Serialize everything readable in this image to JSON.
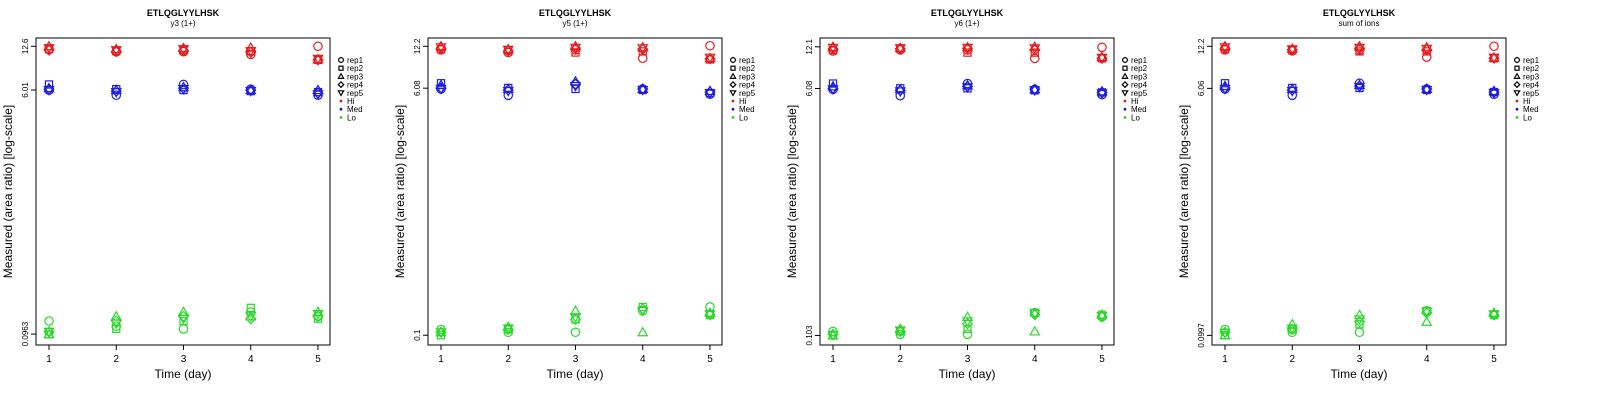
{
  "colors": {
    "Hi": "#e41a1c",
    "Med": "#1f1fe0",
    "Lo": "#2bd62b"
  },
  "chart_data": [
    {
      "type": "scatter",
      "title": "ETLQGLYYLHSK",
      "subtitle": "y3 (1+)",
      "xlabel": "Time (day)",
      "ylabel": "Measured (area ratio) [log-scale]",
      "x_ticks": [
        "1",
        "2",
        "3",
        "4",
        "5"
      ],
      "y_tick_labels": [
        "0.0963",
        "6.01",
        "12.6"
      ],
      "y_tick_values": [
        0.0963,
        6.01,
        12.6
      ],
      "ylim": [
        0.08,
        14.5
      ],
      "legend": [
        "rep1",
        "rep2",
        "rep3",
        "rep4",
        "rep5",
        "Hi",
        "Med",
        "Lo"
      ],
      "series": [
        {
          "group": "Hi",
          "rep": "rep1",
          "values": [
            12.0,
            11.5,
            11.5,
            11.0,
            12.6
          ]
        },
        {
          "group": "Hi",
          "rep": "rep2",
          "values": [
            12.0,
            11.6,
            11.8,
            11.6,
            10.0
          ]
        },
        {
          "group": "Hi",
          "rep": "rep3",
          "values": [
            12.6,
            12.0,
            12.2,
            12.3,
            10.1
          ]
        },
        {
          "group": "Hi",
          "rep": "rep4",
          "values": [
            11.8,
            11.5,
            11.7,
            11.4,
            10.0
          ]
        },
        {
          "group": "Hi",
          "rep": "rep5",
          "values": [
            12.2,
            11.8,
            12.0,
            11.6,
            10.2
          ]
        },
        {
          "group": "Med",
          "rep": "rep1",
          "values": [
            6.0,
            5.5,
            6.6,
            6.1,
            5.5
          ]
        },
        {
          "group": "Med",
          "rep": "rep2",
          "values": [
            6.6,
            6.1,
            6.0,
            5.9,
            5.8
          ]
        },
        {
          "group": "Med",
          "rep": "rep3",
          "values": [
            6.2,
            6.0,
            6.3,
            6.0,
            6.0
          ]
        },
        {
          "group": "Med",
          "rep": "rep4",
          "values": [
            6.1,
            5.9,
            6.2,
            6.0,
            5.7
          ]
        },
        {
          "group": "Med",
          "rep": "rep5",
          "values": [
            6.0,
            5.8,
            6.1,
            5.9,
            5.6
          ]
        },
        {
          "group": "Lo",
          "rep": "rep1",
          "values": [
            0.12,
            0.11,
            0.105,
            0.14,
            0.13
          ]
        },
        {
          "group": "Lo",
          "rep": "rep2",
          "values": [
            0.096,
            0.105,
            0.12,
            0.15,
            0.125
          ]
        },
        {
          "group": "Lo",
          "rep": "rep3",
          "values": [
            0.096,
            0.13,
            0.14,
            0.13,
            0.14
          ]
        },
        {
          "group": "Lo",
          "rep": "rep4",
          "values": [
            0.1,
            0.12,
            0.13,
            0.125,
            0.13
          ]
        },
        {
          "group": "Lo",
          "rep": "rep5",
          "values": [
            0.1,
            0.115,
            0.125,
            0.13,
            0.135
          ]
        }
      ]
    },
    {
      "type": "scatter",
      "title": "ETLQGLYYLHSK",
      "subtitle": "y5 (1+)",
      "xlabel": "Time (day)",
      "ylabel": "Measured (area ratio) [log-scale]",
      "x_ticks": [
        "1",
        "2",
        "3",
        "4",
        "5"
      ],
      "y_tick_labels": [
        "0.1",
        "6.08",
        "12.2"
      ],
      "y_tick_values": [
        0.1,
        6.08,
        12.2
      ],
      "ylim": [
        0.085,
        14.0
      ],
      "legend": [
        "rep1",
        "rep2",
        "rep3",
        "rep4",
        "rep5",
        "Hi",
        "Med",
        "Lo"
      ],
      "series": [
        {
          "group": "Hi",
          "rep": "rep1",
          "values": [
            11.5,
            11.0,
            11.5,
            10.0,
            12.3
          ]
        },
        {
          "group": "Hi",
          "rep": "rep2",
          "values": [
            11.6,
            11.4,
            11.0,
            11.2,
            9.8
          ]
        },
        {
          "group": "Hi",
          "rep": "rep3",
          "values": [
            12.2,
            11.6,
            12.2,
            12.0,
            10.0
          ]
        },
        {
          "group": "Hi",
          "rep": "rep4",
          "values": [
            11.8,
            11.3,
            11.8,
            11.6,
            9.9
          ]
        },
        {
          "group": "Hi",
          "rep": "rep5",
          "values": [
            12.0,
            11.5,
            11.9,
            11.8,
            10.1
          ]
        },
        {
          "group": "Med",
          "rep": "rep1",
          "values": [
            6.0,
            5.4,
            6.5,
            6.0,
            5.5
          ]
        },
        {
          "group": "Med",
          "rep": "rep2",
          "values": [
            6.6,
            6.1,
            6.0,
            5.9,
            5.6
          ]
        },
        {
          "group": "Med",
          "rep": "rep3",
          "values": [
            6.4,
            6.0,
            6.8,
            6.0,
            5.8
          ]
        },
        {
          "group": "Med",
          "rep": "rep4",
          "values": [
            6.1,
            5.9,
            6.5,
            6.0,
            5.7
          ]
        },
        {
          "group": "Med",
          "rep": "rep5",
          "values": [
            6.0,
            5.8,
            6.3,
            5.9,
            5.6
          ]
        },
        {
          "group": "Lo",
          "rep": "rep1",
          "values": [
            0.11,
            0.105,
            0.105,
            0.15,
            0.16
          ]
        },
        {
          "group": "Lo",
          "rep": "rep2",
          "values": [
            0.1,
            0.11,
            0.13,
            0.16,
            0.14
          ]
        },
        {
          "group": "Lo",
          "rep": "rep3",
          "values": [
            0.105,
            0.115,
            0.15,
            0.105,
            0.145
          ]
        },
        {
          "group": "Lo",
          "rep": "rep4",
          "values": [
            0.105,
            0.11,
            0.13,
            0.155,
            0.14
          ]
        },
        {
          "group": "Lo",
          "rep": "rep5",
          "values": [
            0.105,
            0.112,
            0.135,
            0.15,
            0.142
          ]
        }
      ]
    },
    {
      "type": "scatter",
      "title": "ETLQGLYYLHSK",
      "subtitle": "y6 (1+)",
      "xlabel": "Time (day)",
      "ylabel": "Measured (area ratio) [log-scale]",
      "x_ticks": [
        "1",
        "2",
        "3",
        "4",
        "5"
      ],
      "y_tick_labels": [
        "0.103",
        "6.08",
        "12.1"
      ],
      "y_tick_values": [
        0.103,
        6.08,
        12.1
      ],
      "ylim": [
        0.088,
        14.0
      ],
      "legend": [
        "rep1",
        "rep2",
        "rep3",
        "rep4",
        "rep5",
        "Hi",
        "Med",
        "Lo"
      ],
      "series": [
        {
          "group": "Hi",
          "rep": "rep1",
          "values": [
            11.3,
            11.5,
            11.5,
            10.0,
            12.0
          ]
        },
        {
          "group": "Hi",
          "rep": "rep2",
          "values": [
            11.5,
            11.8,
            11.0,
            11.0,
            10.0
          ]
        },
        {
          "group": "Hi",
          "rep": "rep3",
          "values": [
            12.1,
            11.9,
            12.0,
            12.1,
            10.2
          ]
        },
        {
          "group": "Hi",
          "rep": "rep4",
          "values": [
            11.7,
            11.7,
            11.8,
            11.5,
            10.0
          ]
        },
        {
          "group": "Hi",
          "rep": "rep5",
          "values": [
            11.9,
            11.8,
            11.9,
            11.8,
            10.1
          ]
        },
        {
          "group": "Med",
          "rep": "rep1",
          "values": [
            6.0,
            5.4,
            6.6,
            6.0,
            5.5
          ]
        },
        {
          "group": "Med",
          "rep": "rep2",
          "values": [
            6.6,
            6.1,
            6.1,
            5.9,
            5.7
          ]
        },
        {
          "group": "Med",
          "rep": "rep3",
          "values": [
            6.3,
            6.0,
            6.4,
            6.0,
            5.8
          ]
        },
        {
          "group": "Med",
          "rep": "rep4",
          "values": [
            6.1,
            5.9,
            6.3,
            6.0,
            5.7
          ]
        },
        {
          "group": "Med",
          "rep": "rep5",
          "values": [
            6.0,
            5.8,
            6.2,
            5.9,
            5.6
          ]
        },
        {
          "group": "Lo",
          "rep": "rep1",
          "values": [
            0.11,
            0.105,
            0.105,
            0.15,
            0.14
          ]
        },
        {
          "group": "Lo",
          "rep": "rep2",
          "values": [
            0.103,
            0.11,
            0.115,
            0.15,
            0.145
          ]
        },
        {
          "group": "Lo",
          "rep": "rep3",
          "values": [
            0.103,
            0.115,
            0.14,
            0.11,
            0.145
          ]
        },
        {
          "group": "Lo",
          "rep": "rep4",
          "values": [
            0.105,
            0.11,
            0.125,
            0.145,
            0.14
          ]
        },
        {
          "group": "Lo",
          "rep": "rep5",
          "values": [
            0.104,
            0.112,
            0.13,
            0.148,
            0.142
          ]
        }
      ]
    },
    {
      "type": "scatter",
      "title": "ETLQGLYYLHSK",
      "subtitle": "sum of ions",
      "xlabel": "Time (day)",
      "ylabel": "Measured (area ratio) [log-scale]",
      "x_ticks": [
        "1",
        "2",
        "3",
        "4",
        "5"
      ],
      "y_tick_labels": [
        "0.0997",
        "6.06",
        "12.2"
      ],
      "y_tick_values": [
        0.0997,
        6.06,
        12.2
      ],
      "ylim": [
        0.085,
        14.0
      ],
      "legend": [
        "rep1",
        "rep2",
        "rep3",
        "rep4",
        "rep5",
        "Hi",
        "Med",
        "Lo"
      ],
      "series": [
        {
          "group": "Hi",
          "rep": "rep1",
          "values": [
            11.5,
            11.3,
            11.5,
            10.2,
            12.2
          ]
        },
        {
          "group": "Hi",
          "rep": "rep2",
          "values": [
            11.6,
            11.4,
            11.2,
            11.2,
            10.0
          ]
        },
        {
          "group": "Hi",
          "rep": "rep3",
          "values": [
            12.2,
            11.7,
            12.2,
            12.0,
            10.1
          ]
        },
        {
          "group": "Hi",
          "rep": "rep4",
          "values": [
            11.8,
            11.5,
            11.8,
            11.5,
            10.0
          ]
        },
        {
          "group": "Hi",
          "rep": "rep5",
          "values": [
            12.0,
            11.6,
            11.9,
            11.7,
            10.1
          ]
        },
        {
          "group": "Med",
          "rep": "rep1",
          "values": [
            6.0,
            5.4,
            6.6,
            6.0,
            5.5
          ]
        },
        {
          "group": "Med",
          "rep": "rep2",
          "values": [
            6.6,
            6.1,
            6.1,
            5.9,
            5.7
          ]
        },
        {
          "group": "Med",
          "rep": "rep3",
          "values": [
            6.3,
            6.0,
            6.4,
            6.0,
            5.8
          ]
        },
        {
          "group": "Med",
          "rep": "rep4",
          "values": [
            6.1,
            5.9,
            6.3,
            6.0,
            5.7
          ]
        },
        {
          "group": "Med",
          "rep": "rep5",
          "values": [
            6.0,
            5.8,
            6.2,
            5.9,
            5.6
          ]
        },
        {
          "group": "Lo",
          "rep": "rep1",
          "values": [
            0.11,
            0.105,
            0.105,
            0.15,
            0.14
          ]
        },
        {
          "group": "Lo",
          "rep": "rep2",
          "values": [
            0.1,
            0.11,
            0.12,
            0.15,
            0.14
          ]
        },
        {
          "group": "Lo",
          "rep": "rep3",
          "values": [
            0.1,
            0.12,
            0.14,
            0.125,
            0.145
          ]
        },
        {
          "group": "Lo",
          "rep": "rep4",
          "values": [
            0.105,
            0.11,
            0.125,
            0.145,
            0.14
          ]
        },
        {
          "group": "Lo",
          "rep": "rep5",
          "values": [
            0.104,
            0.112,
            0.13,
            0.148,
            0.142
          ]
        }
      ]
    }
  ]
}
